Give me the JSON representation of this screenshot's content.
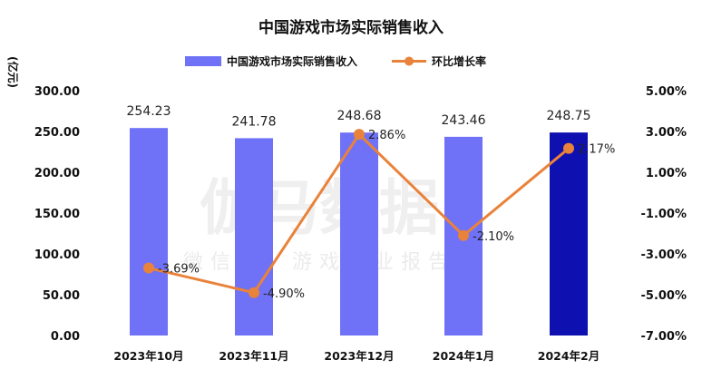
{
  "chart_data": {
    "type": "bar",
    "title": "中国游戏市场实际销售收入",
    "categories": [
      "2023年10月",
      "2023年11月",
      "2023年12月",
      "2024年1月",
      "2024年2月"
    ],
    "y_left_unit": "(亿元)",
    "y_left_ticks": [
      "300.00",
      "250.00",
      "200.00",
      "150.00",
      "100.00",
      "50.00",
      "0.00"
    ],
    "y_left_range": [
      0,
      300
    ],
    "y_right_ticks": [
      "5.00%",
      "3.00%",
      "1.00%",
      "-1.00%",
      "-3.00%",
      "-5.00%",
      "-7.00%"
    ],
    "y_right_range": [
      -7,
      5
    ],
    "series": [
      {
        "name": "中国游戏市场实际销售收入",
        "type": "bar",
        "axis": "left",
        "values": [
          254.23,
          241.78,
          248.68,
          243.46,
          248.75
        ],
        "labels": [
          "254.23",
          "241.78",
          "248.68",
          "243.46",
          "248.75"
        ],
        "color": "#6f72f7",
        "highlight_color": "#0f10b0"
      },
      {
        "name": "环比增长率",
        "type": "line",
        "axis": "right",
        "values": [
          -3.69,
          -4.9,
          2.86,
          -2.1,
          2.17
        ],
        "labels": [
          "-3.69%",
          "-4.90%",
          "2.86%",
          "-2.10%",
          "2.17%"
        ],
        "color": "#e9823a"
      }
    ],
    "grid": false,
    "legend_position": "top"
  },
  "watermark": {
    "main": "伽马数据",
    "sub": "微信号：游戏产业报告"
  }
}
